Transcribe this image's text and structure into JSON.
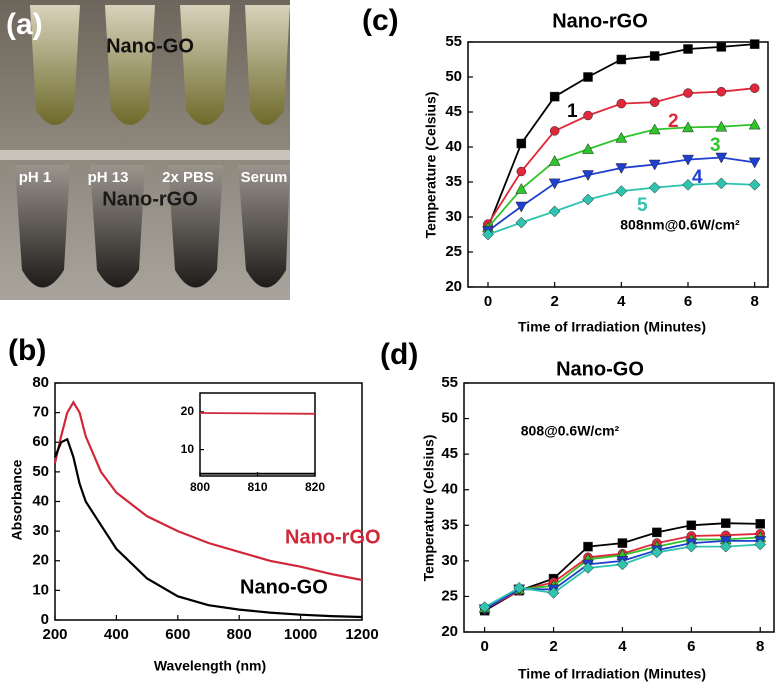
{
  "photo": {
    "panel_label": "(a)",
    "top_label": "Nano-GO",
    "tube_labels": [
      "pH 1",
      "pH 13",
      "2x PBS",
      "Serum"
    ],
    "bottom_label": "Nano-rGO"
  },
  "chart_data": [
    {
      "type": "line",
      "panel_label": "(b)",
      "x_label": "Wavelength (nm)",
      "y_label": "Absorbance",
      "x": [
        200,
        220,
        240,
        260,
        280,
        300,
        350,
        400,
        500,
        600,
        700,
        800,
        900,
        1000,
        1100,
        1200
      ],
      "series": [
        {
          "name": "Nano-rGO",
          "color": "#d0283a",
          "values": [
            53,
            62,
            70,
            73.5,
            70,
            62,
            50,
            43,
            35,
            30,
            26,
            23,
            20,
            18,
            15.5,
            13.5
          ]
        },
        {
          "name": "Nano-GO",
          "color": "#000000",
          "values": [
            55,
            60,
            61,
            55,
            46,
            40,
            32,
            24,
            14,
            8,
            5,
            3.5,
            2.5,
            1.8,
            1.3,
            1
          ]
        }
      ],
      "xlim": [
        200,
        1200
      ],
      "xticks": [
        200,
        400,
        600,
        800,
        1000,
        1200
      ],
      "ylim": [
        0,
        80
      ],
      "yticks": [
        0,
        10,
        20,
        30,
        40,
        50,
        60,
        70,
        80
      ]
    },
    {
      "type": "line",
      "x": [
        800,
        820
      ],
      "series": [
        {
          "color": "#d0283a",
          "values": [
            19.7,
            19.5
          ]
        },
        {
          "color": "#000000",
          "values": [
            3.6,
            3.6
          ]
        }
      ],
      "xlim": [
        800,
        820
      ],
      "xticks": [
        800,
        810,
        820
      ],
      "ylim": [
        3,
        25
      ],
      "yticks": [
        10,
        20
      ]
    },
    {
      "type": "line",
      "panel_label": "(c)",
      "title": "Nano-rGO",
      "annotation": "808nm@0.6W/cm²",
      "x_label": "Time of Irradiation (Minutes)",
      "y_label": "Temperature (Celsius)",
      "x": [
        0,
        1,
        2,
        3,
        4,
        5,
        6,
        7,
        8
      ],
      "series": [
        {
          "name": "1",
          "color": "#000000",
          "marker": "square",
          "values": [
            28.5,
            40.5,
            47.2,
            50,
            52.5,
            53,
            54,
            54.3,
            54.7
          ]
        },
        {
          "name": "2",
          "color": "#e0283a",
          "marker": "circle",
          "values": [
            29,
            36.5,
            42.3,
            44.5,
            46.2,
            46.4,
            47.7,
            47.9,
            48.4
          ]
        },
        {
          "name": "3",
          "color": "#2ec42a",
          "marker": "triangle",
          "values": [
            28.5,
            34,
            38,
            39.7,
            41.3,
            42.5,
            42.8,
            42.9,
            43.2
          ]
        },
        {
          "name": "4",
          "color": "#1f3fd1",
          "marker": "triangle-down",
          "values": [
            28,
            31.5,
            34.8,
            36,
            37,
            37.5,
            38.2,
            38.5,
            37.8
          ]
        },
        {
          "name": "5",
          "color": "#2ec4b0",
          "marker": "diamond",
          "values": [
            27.5,
            29.2,
            30.8,
            32.5,
            33.7,
            34.2,
            34.6,
            34.8,
            34.6
          ]
        }
      ],
      "xlim": [
        -0.6,
        8.4
      ],
      "xticks": [
        0,
        2,
        4,
        6,
        8
      ],
      "ylim": [
        20,
        55
      ],
      "yticks": [
        20,
        25,
        30,
        35,
        40,
        45,
        50,
        55
      ]
    },
    {
      "type": "line",
      "panel_label": "(d)",
      "title": "Nano-GO",
      "annotation": "808@0.6W/cm²",
      "x_label": "Time of Irradiation (Minutes)",
      "y_label": "Temperature (Celsius)",
      "x": [
        0,
        1,
        2,
        3,
        4,
        5,
        6,
        7,
        8
      ],
      "series": [
        {
          "color": "#000000",
          "marker": "square",
          "values": [
            23,
            25.8,
            27.5,
            32,
            32.5,
            34,
            35,
            35.3,
            35.2
          ]
        },
        {
          "color": "#e0283a",
          "marker": "circle",
          "values": [
            23.2,
            25.8,
            27,
            30.5,
            31,
            32.5,
            33.5,
            33.6,
            33.8
          ]
        },
        {
          "color": "#2ec42a",
          "marker": "triangle",
          "values": [
            23.4,
            26,
            26.5,
            30.2,
            30.8,
            32,
            33,
            33,
            33.3
          ]
        },
        {
          "color": "#1f3fd1",
          "marker": "triangle-down",
          "values": [
            23.2,
            26,
            26,
            29.5,
            30,
            31.5,
            32.5,
            32.8,
            32.8
          ]
        },
        {
          "color": "#2ec4b0",
          "marker": "diamond",
          "values": [
            23.5,
            26.2,
            25.5,
            29,
            29.5,
            31.2,
            32,
            32,
            32.3
          ]
        }
      ],
      "xlim": [
        -0.6,
        8.4
      ],
      "xticks": [
        0,
        2,
        4,
        6,
        8
      ],
      "ylim": [
        20,
        55
      ],
      "yticks": [
        20,
        25,
        30,
        35,
        40,
        45,
        50,
        55
      ]
    }
  ]
}
